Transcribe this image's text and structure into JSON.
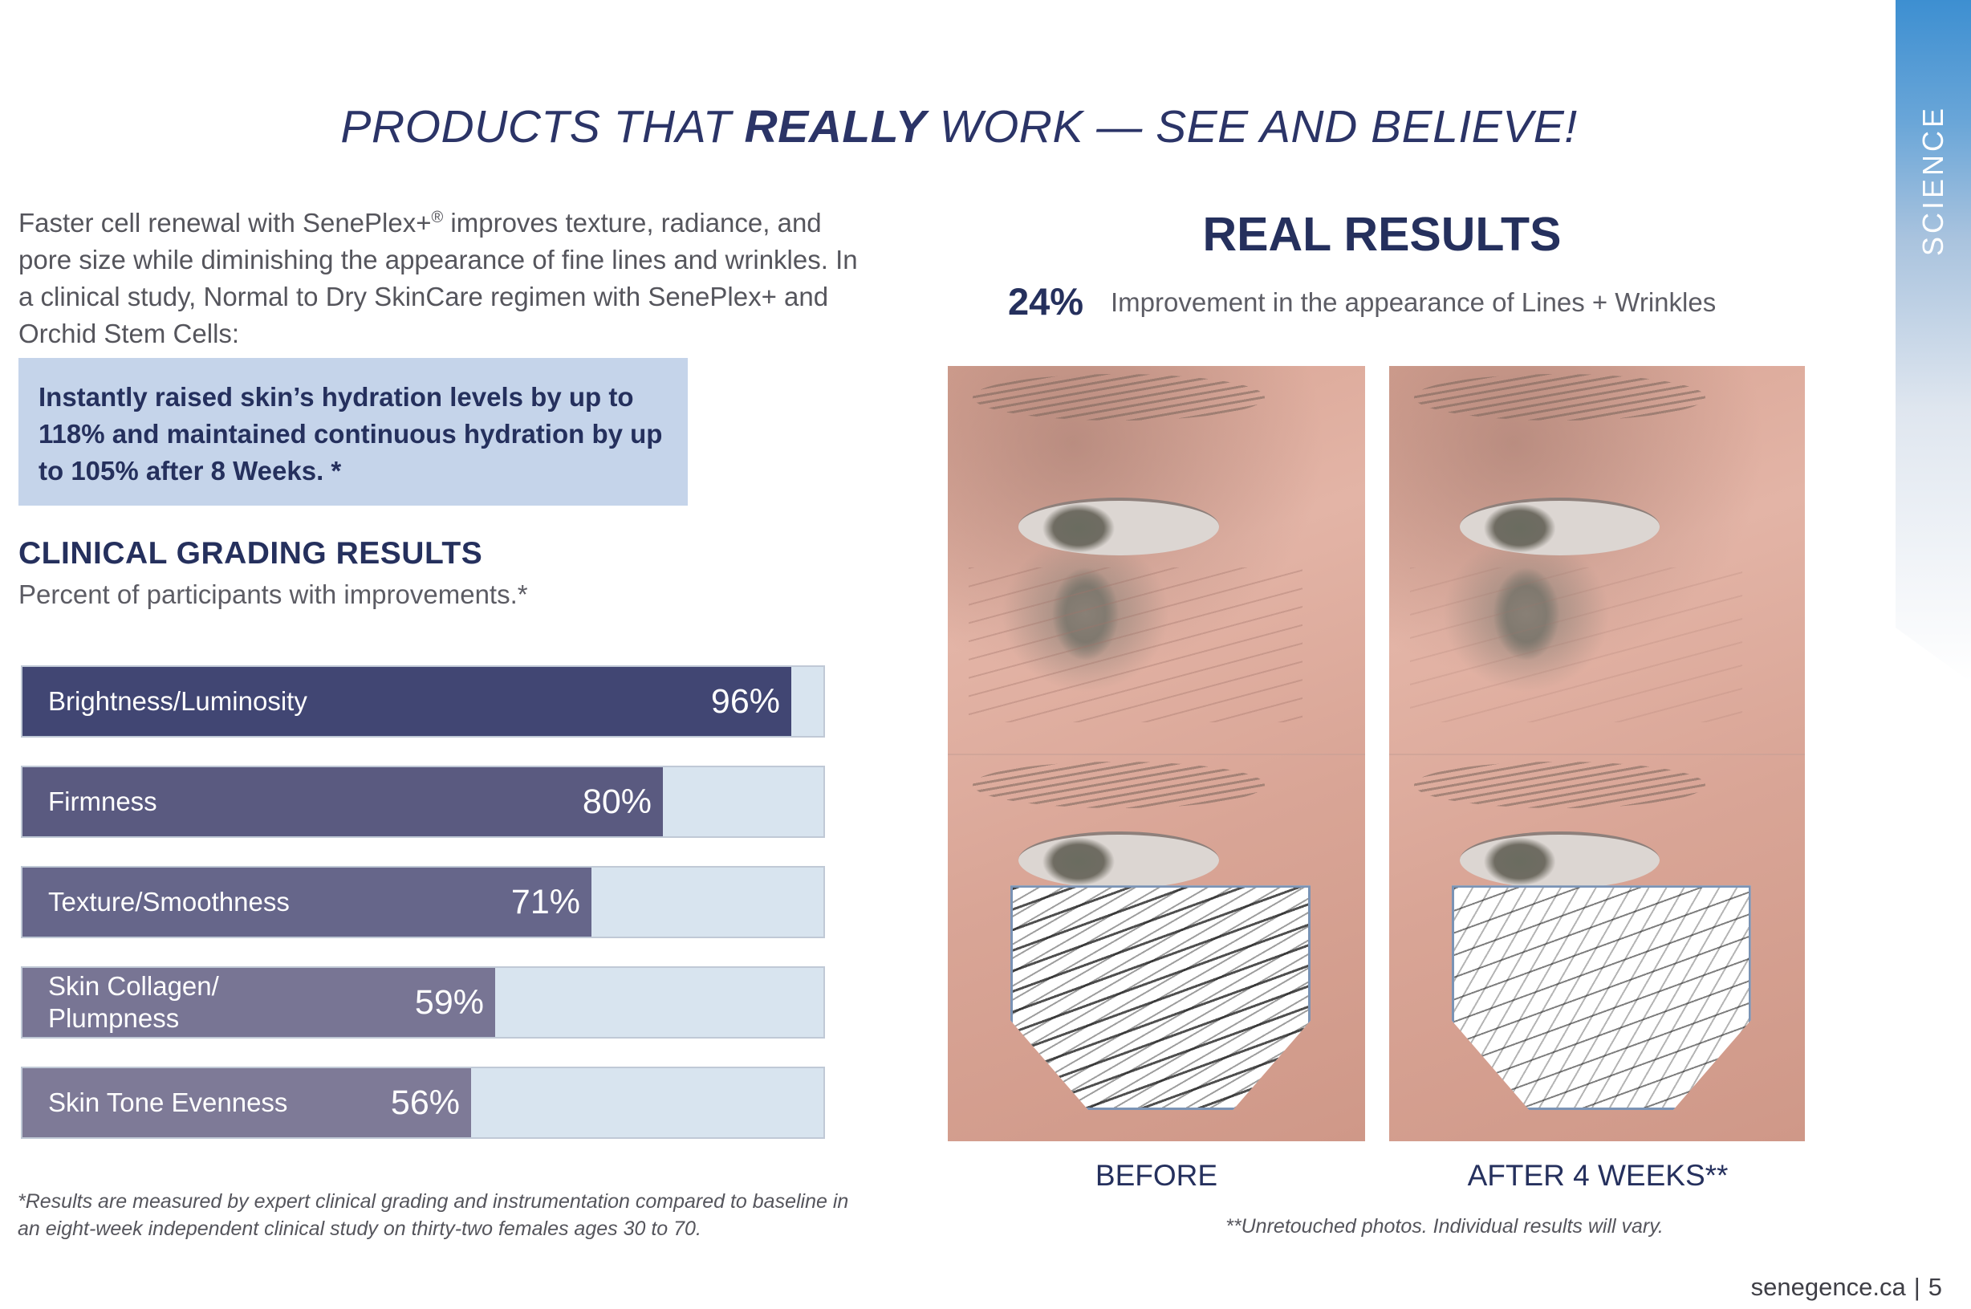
{
  "side_tab": {
    "label": "SCIENCE"
  },
  "headline": {
    "part1": "PRODUCTS THAT ",
    "bold": "REALLY",
    "part2": " WORK — SEE AND BELIEVE!"
  },
  "intro": {
    "prefix": "Faster cell renewal with SenePlex+",
    "registered": "®",
    "rest": " improves texture, radiance, and pore size while diminishing the appearance of fine lines and wrinkles. In a clinical study, Normal to Dry SkinCare regimen with SenePlex+ and Orchid Stem Cells:"
  },
  "highlight": "Instantly raised skin’s hydration levels by up to 118% and maintained continuous hydration by up to 105% after 8 Weeks. *",
  "grading": {
    "title": "CLINICAL GRADING RESULTS",
    "subtitle": "Percent of participants with improvements.*"
  },
  "chart_data": {
    "type": "bar",
    "orientation": "horizontal",
    "title": "CLINICAL GRADING RESULTS",
    "categories": [
      "Brightness/Luminosity",
      "Firmness",
      "Texture/Smoothness",
      "Skin Collagen/\nPlumpness",
      "Skin Tone Evenness"
    ],
    "values": [
      96,
      80,
      71,
      59,
      56
    ],
    "value_labels": [
      "96%",
      "80%",
      "71%",
      "59%",
      "56%"
    ],
    "xlim": [
      0,
      100
    ],
    "colors": [
      "#414673",
      "#5a5a80",
      "#66668a",
      "#787594",
      "#7e7a97"
    ],
    "track_color": "#d8e4ef"
  },
  "footnote": "*Results are measured by expert clinical grading and instrumentation compared to baseline in an eight-week independent clinical study on thirty-two females ages 30 to 70.",
  "real_results": {
    "title": "REAL RESULTS",
    "stat_value": "24%",
    "stat_text": "Improvement in the appearance of Lines + Wrinkles",
    "before_label": "BEFORE",
    "after_label": "AFTER 4 WEEKS**",
    "photo_note": "**Unretouched photos. Individual results will vary."
  },
  "footer": {
    "site": "senegence.ca",
    "separator": "|",
    "page": "5"
  }
}
